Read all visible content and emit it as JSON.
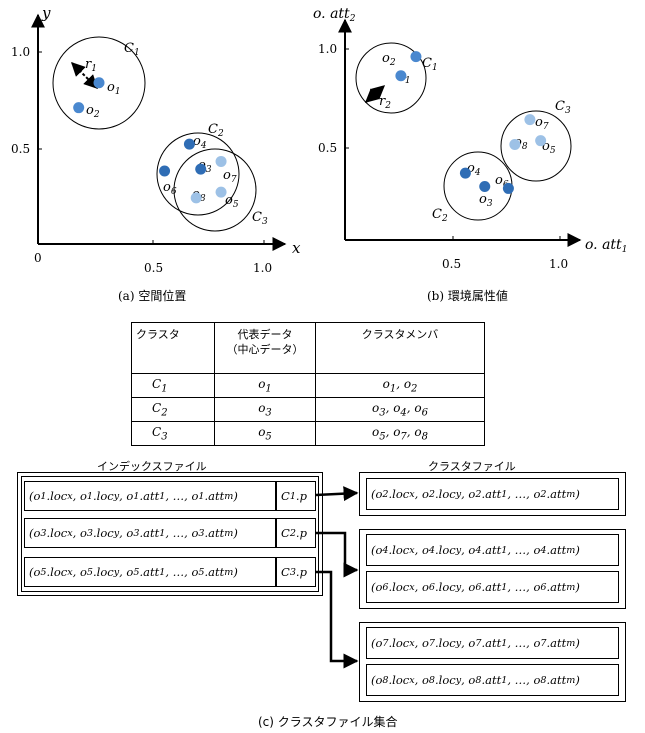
{
  "colors": {
    "dark": "#2f6db5",
    "light": "#9dc1e6",
    "mid": "#4a88cf"
  },
  "plot_a": {
    "x_label": "x",
    "y_label": "y",
    "ticks_x": [
      "0.5",
      "1.0"
    ],
    "ticks_y": [
      "0.5",
      "1.0"
    ],
    "origin": "0",
    "circle_labels": [
      "C1",
      "C2",
      "C3"
    ],
    "radius_label": "r1",
    "points": [
      {
        "name": "o1",
        "x": 0.27,
        "y": 0.84,
        "shade": "mid"
      },
      {
        "name": "o2",
        "x": 0.18,
        "y": 0.71,
        "shade": "mid"
      },
      {
        "name": "o4",
        "x": 0.67,
        "y": 0.52,
        "shade": "dark"
      },
      {
        "name": "o3",
        "x": 0.72,
        "y": 0.39,
        "shade": "dark"
      },
      {
        "name": "o6",
        "x": 0.56,
        "y": 0.38,
        "shade": "dark"
      },
      {
        "name": "o7",
        "x": 0.81,
        "y": 0.43,
        "shade": "light"
      },
      {
        "name": "o8",
        "x": 0.7,
        "y": 0.24,
        "shade": "light"
      },
      {
        "name": "o5",
        "x": 0.81,
        "y": 0.27,
        "shade": "light"
      }
    ],
    "caption": "(a) 空間位置"
  },
  "plot_b": {
    "x_label": "o. att1",
    "y_label": "o. att2",
    "ticks_x": [
      "0.5",
      "1.0"
    ],
    "ticks_y": [
      "0.5",
      "1.0"
    ],
    "circle_labels": [
      "C1",
      "C2",
      "C3"
    ],
    "radius_label": "r2",
    "points": [
      {
        "name": "o2",
        "x": 0.33,
        "y": 0.96,
        "shade": "mid"
      },
      {
        "name": "o1",
        "x": 0.26,
        "y": 0.86,
        "shade": "mid"
      },
      {
        "name": "o7",
        "x": 0.86,
        "y": 0.63,
        "shade": "light"
      },
      {
        "name": "o8",
        "x": 0.79,
        "y": 0.5,
        "shade": "light"
      },
      {
        "name": "o5",
        "x": 0.91,
        "y": 0.52,
        "shade": "light"
      },
      {
        "name": "o4",
        "x": 0.56,
        "y": 0.35,
        "shade": "dark"
      },
      {
        "name": "o3",
        "x": 0.65,
        "y": 0.28,
        "shade": "dark"
      },
      {
        "name": "o6",
        "x": 0.76,
        "y": 0.27,
        "shade": "dark"
      }
    ],
    "caption": "(b) 環境属性値"
  },
  "table": {
    "headers": [
      "クラスタ",
      "代表データ\n（中心データ）",
      "クラスタメンバ"
    ],
    "rows": [
      [
        "C1",
        "o1",
        "o1, o2"
      ],
      [
        "C2",
        "o3",
        "o3, o4, o6"
      ],
      [
        "C3",
        "o5",
        "o5, o7, o8"
      ]
    ]
  },
  "files": {
    "index_title": "インデックスファイル",
    "cluster_title": "クラスタファイル",
    "index_rows": [
      {
        "tuple": "(o1.locx, o1.locy, o1.att1, …, o1.attm)",
        "ptr": "C1.p"
      },
      {
        "tuple": "(o3.locx, o3.locy, o3.att1, …, o3.attm)",
        "ptr": "C2.p"
      },
      {
        "tuple": "(o5.locx, o5.locy, o5.att1, …, o5.attm)",
        "ptr": "C3.p"
      }
    ],
    "cluster_groups": [
      [
        "(o2.locx, o2.locy, o2.att1, …, o2.attm)"
      ],
      [
        "(o4.locx, o4.locy, o4.att1, …, o4.attm)",
        "(o6.locx, o6.locy, o6.att1, …, o6.attm)"
      ],
      [
        "(o7.locx, o7.locy, o7.att1, …, o7.attm)",
        "(o8.locx, o8.locy, o8.att1, …, o8.attm)"
      ]
    ],
    "caption": "(c) クラスタファイル集合"
  }
}
